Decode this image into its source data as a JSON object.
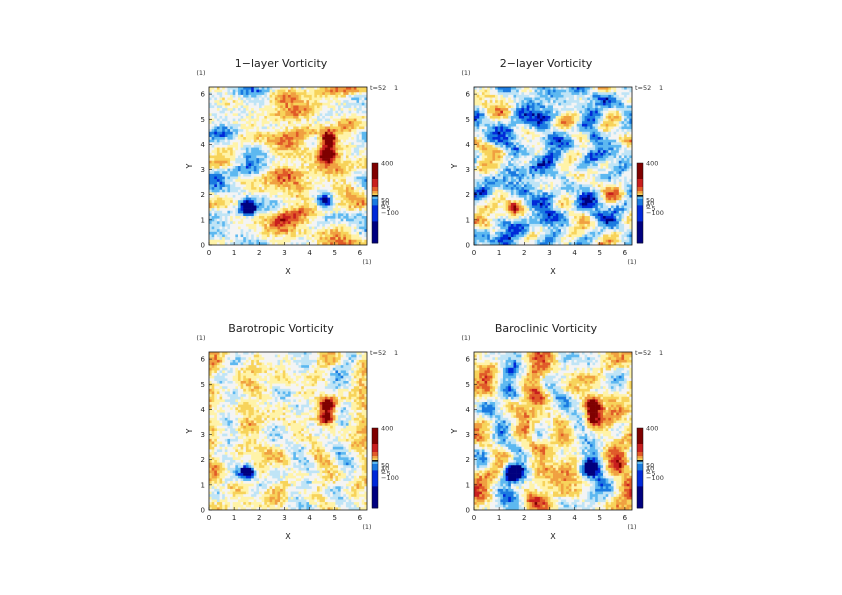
{
  "chart_data": [
    {
      "type": "heatmap",
      "title": "1−layer Vorticity",
      "xlabel": "X",
      "ylabel": "Y",
      "xlim": [
        0,
        6.283
      ],
      "ylim": [
        0,
        6.283
      ],
      "x_ticks": [
        "0",
        "1",
        "2",
        "3",
        "4",
        "5",
        "6"
      ],
      "y_ticks": [
        "0",
        "1",
        "2",
        "3",
        "4",
        "5",
        "6"
      ],
      "unit_x": "(1)",
      "unit_y": "(1)",
      "time_label": "t=52",
      "time_unit": "1",
      "colorbar_labels": [
        "400",
        "50",
        "10",
        "0",
        "−5",
        "−100"
      ],
      "dominant": "mixed",
      "eddies": [
        {
          "x": 1.55,
          "y": 1.5,
          "sign": "negative",
          "strength": 1.0
        },
        {
          "x": 4.75,
          "y": 4.2,
          "sign": "positive",
          "strength": 1.0
        },
        {
          "x": 4.7,
          "y": 3.6,
          "sign": "positive",
          "strength": 0.9
        },
        {
          "x": 4.6,
          "y": 1.7,
          "sign": "negative",
          "strength": 0.6
        }
      ]
    },
    {
      "type": "heatmap",
      "title": "2−layer Vorticity",
      "xlabel": "X",
      "ylabel": "Y",
      "xlim": [
        0,
        6.283
      ],
      "ylim": [
        0,
        6.283
      ],
      "x_ticks": [
        "0",
        "1",
        "2",
        "3",
        "4",
        "5",
        "6"
      ],
      "y_ticks": [
        "0",
        "1",
        "2",
        "3",
        "4",
        "5",
        "6"
      ],
      "unit_x": "(1)",
      "unit_y": "(1)",
      "time_label": "t=52",
      "time_unit": "1",
      "colorbar_labels": [
        "400",
        "50",
        "10",
        "0",
        "−5",
        "−100"
      ],
      "dominant": "cool",
      "eddies": [
        {
          "x": 1.6,
          "y": 1.45,
          "sign": "positive",
          "strength": 0.7
        },
        {
          "x": 4.8,
          "y": 4.3,
          "sign": "negative",
          "strength": 0.4
        }
      ]
    },
    {
      "type": "heatmap",
      "title": "Barotropic Vorticity",
      "xlabel": "X",
      "ylabel": "Y",
      "xlim": [
        0,
        6.283
      ],
      "ylim": [
        0,
        6.283
      ],
      "x_ticks": [
        "0",
        "1",
        "2",
        "3",
        "4",
        "5",
        "6"
      ],
      "y_ticks": [
        "0",
        "1",
        "2",
        "3",
        "4",
        "5",
        "6"
      ],
      "unit_x": "(1)",
      "unit_y": "(1)",
      "time_label": "t=52",
      "time_unit": "1",
      "colorbar_labels": [
        "400",
        "50",
        "10",
        "0",
        "−5",
        "−100"
      ],
      "dominant": "light",
      "eddies": [
        {
          "x": 1.55,
          "y": 1.5,
          "sign": "negative",
          "strength": 0.8
        },
        {
          "x": 4.75,
          "y": 4.2,
          "sign": "positive",
          "strength": 0.8
        },
        {
          "x": 4.7,
          "y": 3.65,
          "sign": "positive",
          "strength": 0.8
        }
      ]
    },
    {
      "type": "heatmap",
      "title": "Baroclinic Vorticity",
      "xlabel": "X",
      "ylabel": "Y",
      "xlim": [
        0,
        6.283
      ],
      "ylim": [
        0,
        6.283
      ],
      "x_ticks": [
        "0",
        "1",
        "2",
        "3",
        "4",
        "5",
        "6"
      ],
      "y_ticks": [
        "0",
        "1",
        "2",
        "3",
        "4",
        "5",
        "6"
      ],
      "unit_x": "(1)",
      "unit_y": "(1)",
      "time_label": "t=52",
      "time_unit": "1",
      "colorbar_labels": [
        "400",
        "50",
        "10",
        "0",
        "−5",
        "−100"
      ],
      "dominant": "mixed",
      "eddies": [
        {
          "x": 1.55,
          "y": 1.5,
          "sign": "negative",
          "strength": 1.0
        },
        {
          "x": 4.75,
          "y": 4.15,
          "sign": "positive",
          "strength": 0.8
        },
        {
          "x": 4.7,
          "y": 3.6,
          "sign": "positive",
          "strength": 0.8
        },
        {
          "x": 4.6,
          "y": 1.7,
          "sign": "negative",
          "strength": 0.5
        }
      ]
    }
  ],
  "colormap": [
    "#00007f",
    "#0028d8",
    "#1a7ae0",
    "#5db8f0",
    "#bfe4f6",
    "#f4f4f4",
    "#fff3a8",
    "#f7d35a",
    "#f0a040",
    "#e05a28",
    "#c81e1e",
    "#7f0000"
  ]
}
